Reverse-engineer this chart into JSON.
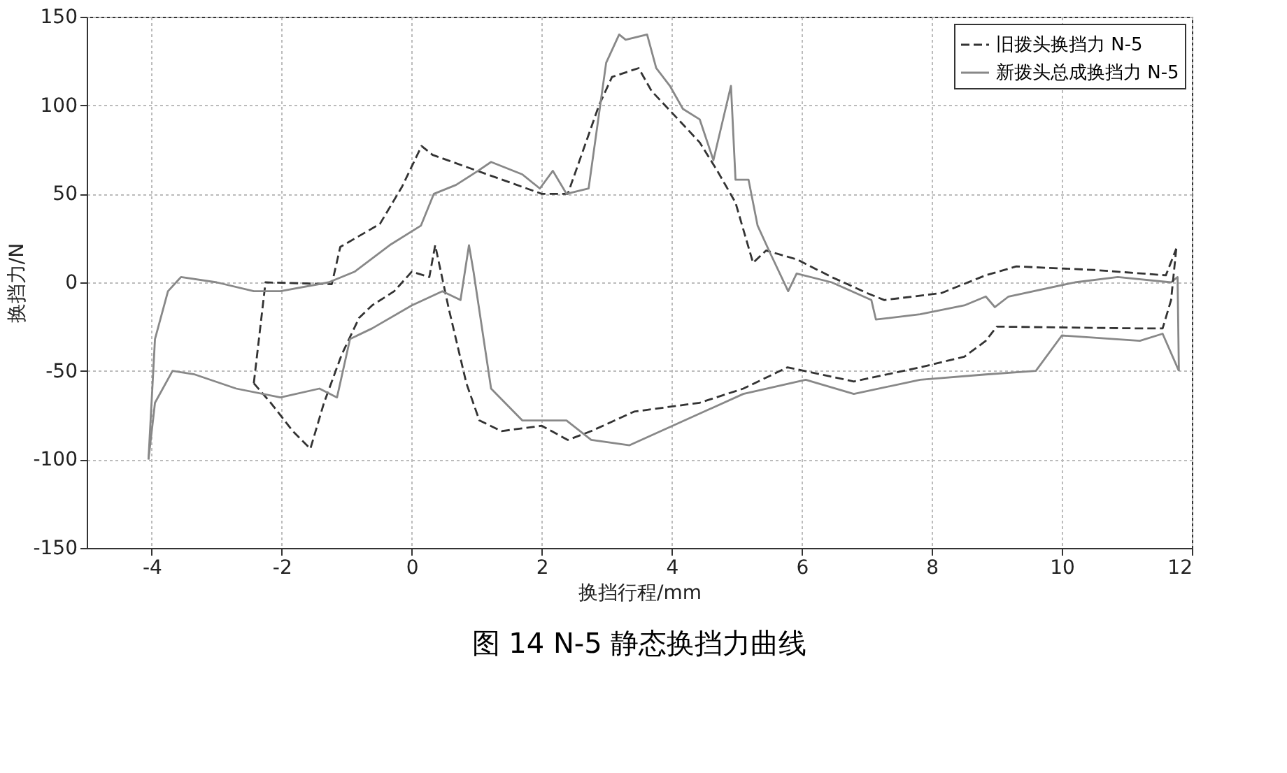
{
  "chart_data": {
    "type": "line",
    "title": "图 14 N-5 静态换挡力曲线",
    "xlabel": "换挡行程/mm",
    "ylabel": "换挡力/N",
    "xlim": [
      -5,
      12
    ],
    "ylim": [
      -150,
      150
    ],
    "xticks": [
      -4,
      -2,
      0,
      2,
      4,
      6,
      8,
      10,
      12
    ],
    "yticks": [
      -150,
      -100,
      -50,
      0,
      50,
      100,
      150
    ],
    "grid": true,
    "legend": "top right",
    "marker": "none",
    "series": [
      {
        "name": "旧拨头换挡力 N-5",
        "color": "#333333",
        "line_style": "dashed",
        "x": [
          -2.43,
          -2.25,
          -1.23,
          -1.1,
          -0.49,
          -0.15,
          0.15,
          0.32,
          2.0,
          2.4,
          2.88,
          3.08,
          3.49,
          3.69,
          4.1,
          4.43,
          4.7,
          4.98,
          5.25,
          5.45,
          5.92,
          6.46,
          7.0,
          7.27,
          8.15,
          8.83,
          9.3,
          10.5,
          11.6,
          11.76
        ],
        "values": [
          -57,
          0,
          -1,
          20,
          33,
          54,
          77,
          72,
          50,
          50,
          100,
          116,
          121,
          108,
          92,
          79,
          63,
          45,
          11,
          18,
          13,
          3,
          -6,
          -10,
          -6,
          4,
          9,
          7,
          4,
          19
        ]
      },
      {
        "name": "新拨头总成换挡力 N-5",
        "color": "#888888",
        "line_style": "solid",
        "x": [
          -4.05,
          -3.95,
          -3.75,
          -3.55,
          -3.0,
          -2.43,
          -2.02,
          -1.28,
          -0.88,
          -0.34,
          0.14,
          0.34,
          0.68,
          1.02,
          1.22,
          1.7,
          1.97,
          2.17,
          2.38,
          2.72,
          2.99,
          3.19,
          3.29,
          3.62,
          3.76,
          3.97,
          4.17,
          4.43,
          4.64,
          4.91,
          4.98,
          5.18,
          5.32,
          5.52,
          5.79,
          5.92,
          6.46,
          7.07,
          7.14,
          7.82,
          8.5,
          8.83,
          8.97,
          9.18,
          10.2,
          10.86,
          11.68,
          11.78,
          11.8
        ],
        "values": [
          -100,
          -32,
          -5,
          3,
          0,
          -5,
          -5,
          0,
          6,
          21,
          32,
          50,
          55,
          63,
          68,
          61,
          53,
          63,
          50,
          53,
          124,
          140,
          137,
          140,
          121,
          111,
          98,
          92,
          69,
          111,
          58,
          58,
          32,
          16,
          -5,
          5,
          0,
          -10,
          -21,
          -18,
          -13,
          -8,
          -14,
          -8,
          0,
          3,
          0,
          3,
          -50
        ]
      },
      {
        "color": "#333333",
        "line_style": "dashed",
        "x": [
          11.76,
          11.68,
          11.55,
          11.2,
          9.0,
          8.83,
          8.5,
          7.82,
          6.8,
          5.78,
          5.1,
          4.43,
          3.42,
          2.76,
          2.4,
          2.0,
          1.38,
          1.04,
          0.84,
          0.57,
          0.36,
          0.27,
          0.0,
          -0.27,
          -0.61,
          -0.81,
          -1.08,
          -1.35,
          -1.56,
          -1.83,
          -2.17,
          -2.43
        ],
        "values": [
          19,
          -10,
          -26,
          -26,
          -25,
          -33,
          -42,
          -48,
          -56,
          -48,
          -60,
          -68,
          -73,
          -84,
          -89,
          -81,
          -84,
          -78,
          -57,
          -15,
          21,
          3,
          6,
          -5,
          -13,
          -20,
          -41,
          -68,
          -94,
          -84,
          -68,
          -57
        ]
      },
      {
        "color": "#888888",
        "line_style": "solid",
        "x": [
          11.8,
          11.55,
          11.2,
          10.0,
          9.6,
          8.83,
          7.82,
          6.8,
          6.06,
          5.1,
          3.35,
          2.76,
          2.38,
          1.7,
          1.22,
          0.95,
          0.88,
          0.75,
          0.47,
          0.0,
          -0.61,
          -0.95,
          -1.15,
          -1.42,
          -2.02,
          -2.7,
          -3.34,
          -3.68,
          -3.95,
          -4.05
        ],
        "values": [
          -50,
          -29,
          -33,
          -30,
          -50,
          -52,
          -55,
          -63,
          -55,
          -63,
          -92,
          -89,
          -78,
          -78,
          -60,
          6,
          21,
          -10,
          -5,
          -13,
          -26,
          -32,
          -65,
          -60,
          -65,
          -60,
          -52,
          -50,
          -68,
          -100
        ]
      }
    ]
  }
}
